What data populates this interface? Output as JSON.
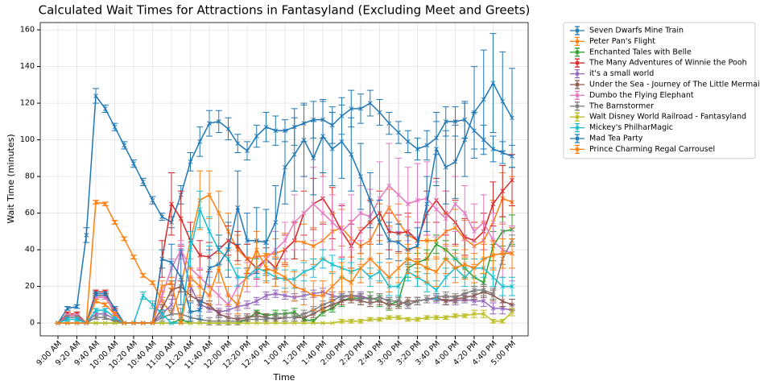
{
  "chart_data": {
    "type": "line",
    "title": "Calculated Wait Times for Attractions in Fantasyland (Excluding Meet and Greets)",
    "xlabel": "Time",
    "ylabel": "Wait Time (minutes)",
    "categories": [
      "9:00 AM",
      null,
      "9:20 AM",
      null,
      "9:40 AM",
      null,
      "10:00 AM",
      null,
      "10:20 AM",
      null,
      "10:40 AM",
      null,
      "11:00 AM",
      null,
      "11:20 AM",
      null,
      "11:40 AM",
      null,
      "12:00 PM",
      null,
      "12:20 PM",
      null,
      "12:40 PM",
      null,
      "1:00 PM",
      null,
      "1:20 PM",
      null,
      "1:40 PM",
      null,
      "2:00 PM",
      null,
      "2:20 PM",
      null,
      "2:40 PM",
      null,
      "3:00 PM",
      null,
      "3:20 PM",
      null,
      "3:40 PM",
      null,
      "4:00 PM",
      null,
      "4:20 PM",
      null,
      "4:40 PM",
      null,
      "5:00 PM"
    ],
    "ylim": [
      -7,
      164
    ],
    "yticks": [
      0,
      20,
      40,
      60,
      80,
      100,
      120,
      140,
      160
    ],
    "grid": true,
    "legend": "outside-right",
    "series": [
      {
        "name": "Seven Dwarfs Mine Train",
        "color": "#1f77b4",
        "values": [
          0,
          8,
          9,
          48,
          124,
          117,
          107,
          97,
          87,
          77,
          67,
          58,
          55,
          70,
          88,
          99,
          109,
          110,
          106,
          98,
          94,
          102,
          107,
          105,
          105,
          107,
          109,
          111,
          111,
          108,
          113,
          117,
          117,
          120,
          115,
          109,
          104,
          99,
          95,
          97,
          101,
          110,
          110,
          111,
          105,
          100,
          95,
          93,
          91
        ],
        "errors": [
          0,
          1,
          1,
          4,
          4,
          2,
          2,
          2,
          2,
          2,
          2,
          2,
          3,
          5,
          5,
          8,
          7,
          6,
          6,
          5,
          5,
          6,
          8,
          8,
          6,
          10,
          10,
          10,
          10,
          10,
          10,
          10,
          8,
          7,
          7,
          6,
          6,
          6,
          6,
          8,
          9,
          8,
          8,
          10,
          10,
          8,
          7,
          6,
          6
        ]
      },
      {
        "name": "Peter Pan's Flight",
        "color": "#ff7f0e",
        "values": [
          0,
          5,
          5,
          0,
          66,
          65,
          55,
          46,
          36,
          26,
          22,
          12,
          5,
          20,
          45,
          67,
          70,
          60,
          50,
          40,
          35,
          36,
          37,
          38,
          40,
          45,
          44,
          42,
          45,
          50,
          52,
          46,
          42,
          45,
          55,
          63,
          55,
          48,
          45,
          45,
          45,
          50,
          52,
          46,
          42,
          45,
          55,
          68,
          66
        ],
        "errors": [
          0,
          1,
          1,
          0,
          1,
          1,
          1,
          1,
          1,
          1,
          1,
          2,
          3,
          3,
          10,
          16,
          13,
          12,
          10,
          8,
          8,
          8,
          8,
          8,
          9,
          10,
          10,
          10,
          10,
          10,
          10,
          10,
          10,
          10,
          10,
          10,
          10,
          10,
          10,
          10,
          10,
          10,
          10,
          10,
          10,
          10,
          12,
          14,
          14
        ]
      },
      {
        "name": "Enchanted Tales with Belle",
        "color": "#2ca02c",
        "values": [
          0,
          0,
          0,
          0,
          0,
          0,
          0,
          0,
          0,
          0,
          0,
          0,
          0,
          2,
          0,
          0,
          0,
          0,
          0,
          0,
          2,
          6,
          4,
          5,
          5,
          6,
          2,
          1,
          6,
          8,
          12,
          14,
          13,
          14,
          12,
          10,
          12,
          30,
          33,
          35,
          43,
          40,
          35,
          30,
          25,
          22,
          42,
          50,
          51
        ],
        "errors": [
          0,
          0,
          0,
          0,
          0,
          0,
          0,
          0,
          0,
          0,
          0,
          0,
          0,
          0,
          0,
          0,
          0,
          0,
          0,
          0,
          1,
          1,
          1,
          2,
          2,
          2,
          1,
          1,
          2,
          2,
          3,
          3,
          3,
          3,
          3,
          3,
          3,
          5,
          5,
          5,
          5,
          5,
          5,
          5,
          5,
          5,
          8,
          8,
          8
        ]
      },
      {
        "name": "The Many Adventures of Winnie the Pooh",
        "color": "#d62728",
        "values": [
          0,
          5,
          5,
          0,
          17,
          17,
          7,
          0,
          0,
          0,
          0,
          35,
          65,
          57,
          45,
          37,
          36,
          40,
          45,
          42,
          35,
          30,
          35,
          30,
          40,
          45,
          60,
          65,
          68,
          60,
          50,
          42,
          50,
          55,
          60,
          50,
          49,
          50,
          45,
          60,
          67,
          60,
          55,
          47,
          45,
          50,
          65,
          72,
          78
        ],
        "errors": [
          0,
          1,
          1,
          0,
          1,
          1,
          1,
          0,
          0,
          0,
          0,
          10,
          17,
          15,
          10,
          8,
          8,
          8,
          8,
          8,
          8,
          6,
          6,
          6,
          8,
          10,
          12,
          14,
          14,
          14,
          14,
          12,
          12,
          12,
          12,
          10,
          10,
          10,
          10,
          12,
          12,
          12,
          12,
          10,
          10,
          10,
          12,
          14,
          14
        ]
      },
      {
        "name": "it's a small world",
        "color": "#9467bd",
        "values": [
          0,
          3,
          3,
          0,
          5,
          5,
          2,
          0,
          0,
          0,
          0,
          5,
          10,
          40,
          20,
          10,
          8,
          6,
          7,
          9,
          10,
          12,
          15,
          16,
          15,
          14,
          15,
          16,
          17,
          15,
          14,
          15,
          15,
          13,
          14,
          12,
          12,
          10,
          12,
          13,
          13,
          12,
          12,
          13,
          12,
          12,
          8,
          8,
          7
        ],
        "errors": [
          0,
          1,
          1,
          0,
          1,
          1,
          1,
          0,
          0,
          0,
          0,
          2,
          3,
          3,
          3,
          2,
          2,
          2,
          2,
          2,
          2,
          2,
          2,
          2,
          2,
          2,
          2,
          2,
          2,
          2,
          2,
          2,
          2,
          2,
          2,
          2,
          2,
          2,
          2,
          2,
          2,
          2,
          2,
          2,
          2,
          3,
          3,
          3,
          3
        ]
      },
      {
        "name": "Under the Sea - Journey of The Little Mermaid",
        "color": "#8c564b",
        "values": [
          0,
          4,
          4,
          0,
          15,
          15,
          5,
          0,
          0,
          0,
          0,
          8,
          18,
          20,
          15,
          12,
          10,
          5,
          3,
          2,
          3,
          4,
          3,
          2,
          3,
          3,
          3,
          5,
          8,
          10,
          12,
          13,
          12,
          11,
          12,
          10,
          10,
          12,
          12,
          13,
          14,
          12,
          13,
          14,
          15,
          17,
          15,
          12,
          10
        ],
        "errors": [
          0,
          1,
          1,
          0,
          1,
          1,
          1,
          0,
          0,
          0,
          0,
          2,
          3,
          3,
          3,
          2,
          2,
          2,
          2,
          2,
          2,
          2,
          2,
          2,
          2,
          2,
          2,
          2,
          2,
          2,
          2,
          2,
          2,
          2,
          2,
          2,
          2,
          2,
          2,
          2,
          2,
          2,
          2,
          2,
          2,
          3,
          3,
          3,
          3
        ]
      },
      {
        "name": "Dumbo the Flying Elephant",
        "color": "#e377c2",
        "values": [
          0,
          4,
          4,
          0,
          14,
          14,
          6,
          0,
          0,
          0,
          0,
          15,
          30,
          40,
          30,
          25,
          20,
          15,
          10,
          20,
          25,
          28,
          35,
          40,
          45,
          55,
          60,
          65,
          60,
          55,
          50,
          55,
          60,
          58,
          68,
          75,
          70,
          65,
          67,
          68,
          62,
          57,
          65,
          60,
          50,
          55,
          45,
          40,
          38
        ],
        "errors": [
          0,
          1,
          1,
          0,
          1,
          1,
          1,
          0,
          0,
          0,
          0,
          3,
          5,
          5,
          5,
          5,
          5,
          5,
          5,
          5,
          8,
          8,
          8,
          10,
          10,
          15,
          20,
          20,
          20,
          15,
          15,
          15,
          15,
          15,
          20,
          23,
          20,
          20,
          20,
          20,
          15,
          15,
          15,
          15,
          15,
          15,
          15,
          15,
          15
        ]
      },
      {
        "name": "The Barnstormer",
        "color": "#7f7f7f",
        "values": [
          0,
          3,
          3,
          0,
          3,
          3,
          1,
          0,
          0,
          0,
          0,
          3,
          5,
          5,
          3,
          2,
          1,
          1,
          1,
          1,
          2,
          2,
          2,
          3,
          3,
          3,
          5,
          7,
          10,
          12,
          15,
          15,
          14,
          13,
          14,
          12,
          12,
          10,
          12,
          13,
          14,
          15,
          14,
          16,
          18,
          18,
          16,
          35,
          45
        ],
        "errors": [
          0,
          1,
          1,
          0,
          1,
          1,
          1,
          0,
          0,
          0,
          0,
          2,
          3,
          3,
          3,
          2,
          2,
          2,
          2,
          2,
          2,
          2,
          2,
          2,
          2,
          2,
          2,
          2,
          2,
          2,
          2,
          2,
          2,
          2,
          2,
          2,
          2,
          2,
          2,
          2,
          2,
          2,
          2,
          2,
          2,
          3,
          3,
          3,
          3
        ]
      },
      {
        "name": "Walt Disney World Railroad - Fantasyland",
        "color": "#bcbd22",
        "values": [
          0,
          0,
          0,
          0,
          0,
          0,
          0,
          0,
          0,
          0,
          0,
          0,
          0,
          0,
          0,
          0,
          0,
          0,
          0,
          0,
          0,
          0,
          0,
          0,
          0,
          0,
          0,
          0,
          0,
          0,
          1,
          1,
          1,
          2,
          2,
          3,
          3,
          2,
          2,
          3,
          3,
          3,
          4,
          4,
          5,
          5,
          1,
          1,
          6
        ],
        "errors": [
          0,
          0,
          0,
          0,
          0,
          0,
          0,
          0,
          0,
          0,
          0,
          0,
          0,
          0,
          0,
          0,
          0,
          0,
          0,
          0,
          0,
          0,
          0,
          0,
          0,
          0,
          0,
          0,
          0,
          0,
          1,
          1,
          1,
          1,
          1,
          1,
          1,
          1,
          1,
          1,
          1,
          1,
          1,
          1,
          2,
          2,
          1,
          1,
          2
        ]
      },
      {
        "name": "Mickey's PhilharMagic",
        "color": "#17becf",
        "values": [
          0,
          2,
          2,
          0,
          7,
          7,
          3,
          0,
          0,
          15,
          10,
          5,
          0,
          0,
          40,
          62,
          50,
          40,
          35,
          25,
          25,
          30,
          28,
          25,
          24,
          24,
          28,
          30,
          35,
          32,
          30,
          28,
          30,
          25,
          28,
          20,
          20,
          28,
          25,
          22,
          18,
          25,
          30,
          25,
          30,
          30,
          25,
          20,
          20
        ],
        "errors": [
          0,
          1,
          1,
          0,
          1,
          1,
          1,
          0,
          0,
          2,
          2,
          2,
          0,
          0,
          10,
          10,
          8,
          8,
          6,
          5,
          5,
          5,
          5,
          5,
          5,
          5,
          5,
          5,
          5,
          5,
          5,
          5,
          5,
          5,
          5,
          5,
          5,
          5,
          5,
          5,
          5,
          5,
          5,
          5,
          5,
          5,
          5,
          5,
          5
        ]
      },
      {
        "name": "Mad Tea Party",
        "color": "#1f77b4",
        "values": [
          0,
          0,
          0,
          0,
          16,
          16,
          8,
          0,
          0,
          0,
          0,
          35,
          33,
          25,
          6,
          7,
          30,
          32,
          40,
          63,
          45,
          45,
          44,
          55,
          85,
          92,
          100,
          90,
          102,
          95,
          99,
          92,
          80,
          67,
          55,
          45,
          44,
          40,
          42,
          65,
          95,
          85,
          88,
          100,
          115,
          122,
          131,
          121,
          112
        ],
        "errors": [
          0,
          0,
          0,
          0,
          1,
          1,
          1,
          0,
          0,
          0,
          0,
          5,
          10,
          15,
          5,
          5,
          10,
          10,
          15,
          20,
          15,
          18,
          18,
          20,
          20,
          20,
          20,
          20,
          20,
          20,
          20,
          20,
          18,
          15,
          12,
          10,
          10,
          8,
          10,
          15,
          20,
          20,
          20,
          20,
          25,
          27,
          27,
          27,
          27
        ]
      },
      {
        "name": "Prince Charming Regal Carrousel",
        "color": "#ff7f0e",
        "values": [
          0,
          0,
          0,
          0,
          12,
          10,
          5,
          0,
          0,
          0,
          0,
          20,
          22,
          0,
          25,
          20,
          15,
          30,
          15,
          10,
          28,
          40,
          30,
          28,
          25,
          20,
          18,
          15,
          15,
          20,
          25,
          22,
          30,
          35,
          30,
          25,
          30,
          35,
          33,
          30,
          28,
          35,
          30,
          32,
          30,
          35,
          37,
          38,
          38
        ],
        "errors": [
          0,
          0,
          0,
          0,
          1,
          1,
          1,
          0,
          0,
          0,
          0,
          3,
          3,
          0,
          5,
          5,
          5,
          8,
          5,
          5,
          8,
          10,
          8,
          8,
          8,
          8,
          8,
          8,
          8,
          8,
          8,
          8,
          8,
          8,
          8,
          8,
          8,
          8,
          8,
          8,
          8,
          8,
          8,
          8,
          8,
          8,
          8,
          8,
          8
        ]
      }
    ]
  }
}
